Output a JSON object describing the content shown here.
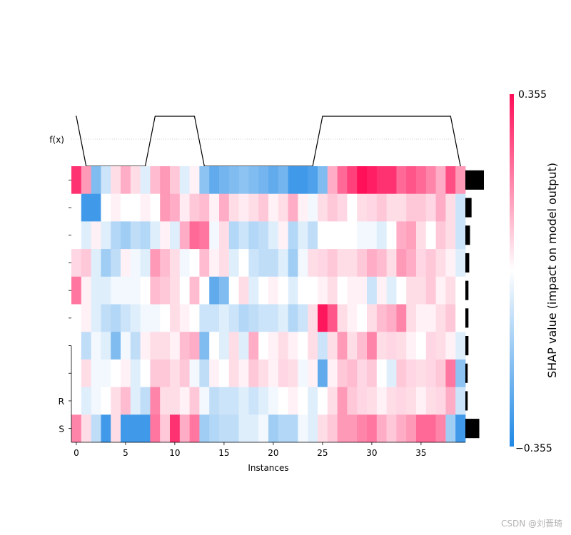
{
  "chart_data": {
    "type": "heatmap",
    "xlabel": "Instances",
    "x_ticks": [
      0,
      5,
      10,
      15,
      20,
      25,
      30,
      35
    ],
    "xlim": [
      0,
      40
    ],
    "n_instances": 40,
    "feature_labels": [
      "",
      "",
      "",
      "",
      "",
      "",
      "",
      "",
      "R",
      "S"
    ],
    "fx_label": "f(x)",
    "colorbar": {
      "title": "SHAP value (impact on model output)",
      "max_label": "0.355",
      "min_label": "−0.355",
      "vmin": -0.355,
      "vmax": 0.355,
      "color_negative": "#1e88e5",
      "color_positive": "#ff0d57",
      "color_mid": "#ffffff"
    },
    "fx_curve": {
      "x": [
        0,
        1,
        7,
        8,
        12,
        13,
        24,
        25,
        38,
        39
      ],
      "y": [
        1,
        0,
        0,
        1,
        1,
        0,
        0,
        1,
        1,
        0
      ],
      "ylim": [
        0,
        1
      ]
    },
    "feature_importance": [
      0.24,
      0.08,
      0.06,
      0.05,
      0.04,
      0.04,
      0.04,
      0.03,
      0.03,
      0.18
    ],
    "rows": [
      [
        0.3,
        0.15,
        -0.2,
        -0.08,
        0.05,
        0.12,
        0.05,
        -0.05,
        0.1,
        0.15,
        0.08,
        -0.05,
        0.02,
        -0.18,
        -0.25,
        -0.22,
        -0.2,
        -0.18,
        -0.2,
        -0.22,
        -0.25,
        -0.22,
        -0.3,
        -0.3,
        -0.28,
        -0.2,
        0.12,
        0.22,
        0.28,
        0.35,
        0.33,
        0.3,
        0.3,
        0.22,
        0.25,
        0.22,
        0.18,
        0.12,
        0.26,
        0.15
      ],
      [
        0.0,
        -0.3,
        -0.3,
        0.0,
        0.02,
        0.0,
        0.0,
        0.02,
        0.0,
        0.15,
        0.12,
        0.03,
        0.08,
        0.1,
        0.02,
        0.12,
        0.05,
        0.03,
        0.05,
        0.08,
        0.02,
        0.05,
        0.12,
        0.02,
        -0.02,
        0.05,
        0.08,
        0.06,
        0.0,
        0.05,
        0.06,
        0.08,
        0.05,
        0.05,
        0.08,
        0.08,
        0.06,
        0.12,
        0.05,
        -0.08
      ],
      [
        0.0,
        -0.05,
        0.02,
        -0.05,
        -0.12,
        -0.15,
        -0.1,
        -0.12,
        -0.05,
        0.02,
        -0.05,
        0.12,
        0.22,
        0.2,
        -0.02,
        0.05,
        -0.12,
        -0.08,
        -0.12,
        -0.1,
        -0.05,
        0.02,
        -0.12,
        -0.05,
        -0.1,
        0.0,
        0.0,
        0.0,
        0.0,
        -0.02,
        -0.02,
        -0.05,
        0.0,
        0.12,
        0.14,
        0.05,
        0.0,
        0.08,
        0.05,
        -0.08
      ],
      [
        0.06,
        0.08,
        -0.05,
        -0.15,
        -0.1,
        0.02,
        -0.02,
        -0.05,
        0.15,
        0.1,
        0.05,
        -0.02,
        0.0,
        0.1,
        0.02,
        0.05,
        -0.05,
        0.0,
        -0.08,
        -0.1,
        -0.1,
        -0.05,
        -0.15,
        -0.02,
        0.05,
        0.06,
        0.08,
        0.05,
        0.05,
        0.08,
        0.12,
        0.1,
        0.05,
        0.15,
        0.12,
        0.06,
        0.08,
        0.05,
        0.02,
        -0.05
      ],
      [
        0.2,
        0.02,
        -0.05,
        -0.05,
        -0.02,
        -0.02,
        -0.02,
        0.0,
        0.1,
        0.08,
        0.05,
        0.0,
        0.1,
        0.0,
        -0.25,
        -0.2,
        0.0,
        0.05,
        -0.05,
        0.0,
        0.02,
        0.0,
        -0.05,
        0.0,
        0.0,
        0.02,
        0.05,
        0.0,
        0.02,
        0.02,
        -0.08,
        0.02,
        -0.05,
        0.0,
        0.05,
        0.05,
        0.08,
        0.02,
        0.05,
        0.0
      ],
      [
        0.0,
        0.02,
        -0.05,
        -0.1,
        -0.12,
        -0.08,
        -0.05,
        -0.02,
        -0.02,
        0.0,
        0.05,
        0.02,
        0.0,
        -0.08,
        -0.08,
        -0.05,
        -0.08,
        -0.12,
        -0.1,
        -0.08,
        -0.08,
        -0.05,
        -0.12,
        -0.08,
        0.05,
        0.34,
        0.25,
        0.05,
        0.02,
        0.0,
        0.05,
        0.1,
        0.12,
        0.18,
        0.05,
        0.02,
        0.02,
        0.05,
        0.08,
        0.0
      ],
      [
        0.0,
        -0.1,
        -0.02,
        -0.05,
        -0.2,
        -0.02,
        -0.1,
        0.02,
        0.05,
        0.05,
        0.02,
        0.1,
        0.12,
        -0.2,
        0.0,
        -0.05,
        0.05,
        -0.05,
        0.12,
        0.0,
        0.02,
        0.05,
        0.02,
        0.0,
        0.05,
        -0.08,
        0.05,
        0.15,
        0.05,
        0.1,
        0.18,
        0.05,
        0.06,
        0.05,
        0.02,
        0.0,
        0.06,
        0.05,
        0.02,
        -0.05
      ],
      [
        0.0,
        0.05,
        -0.02,
        -0.02,
        0.0,
        0.02,
        -0.05,
        0.0,
        0.08,
        0.08,
        0.05,
        0.08,
        -0.02,
        -0.1,
        0.02,
        0.0,
        0.05,
        0.02,
        0.08,
        0.05,
        0.02,
        0.06,
        0.05,
        -0.02,
        0.02,
        -0.25,
        0.02,
        0.08,
        0.1,
        0.06,
        0.08,
        0.0,
        -0.05,
        0.08,
        0.06,
        0.05,
        0.06,
        0.08,
        0.2,
        -0.18
      ],
      [
        0.0,
        -0.05,
        -0.02,
        0.0,
        0.05,
        0.1,
        -0.05,
        -0.1,
        0.18,
        0.05,
        0.05,
        0.02,
        0.08,
        -0.02,
        -0.1,
        -0.08,
        -0.08,
        -0.05,
        -0.08,
        -0.05,
        -0.02,
        0.0,
        0.02,
        0.0,
        -0.05,
        0.0,
        0.05,
        0.15,
        0.08,
        0.06,
        0.05,
        0.02,
        0.05,
        0.06,
        0.05,
        0.02,
        0.05,
        0.06,
        0.12,
        -0.08
      ],
      [
        0.18,
        0.05,
        -0.1,
        -0.3,
        0.05,
        -0.3,
        -0.3,
        -0.3,
        0.2,
        0.08,
        0.3,
        0.12,
        0.2,
        -0.15,
        -0.12,
        -0.1,
        -0.1,
        -0.05,
        -0.05,
        -0.02,
        -0.15,
        -0.12,
        -0.12,
        -0.02,
        -0.05,
        0.05,
        0.08,
        0.15,
        0.15,
        0.18,
        0.2,
        0.12,
        0.08,
        0.12,
        0.15,
        0.22,
        0.22,
        0.18,
        -0.15,
        -0.3
      ]
    ]
  },
  "watermark": "CSDN @刘晋琦"
}
